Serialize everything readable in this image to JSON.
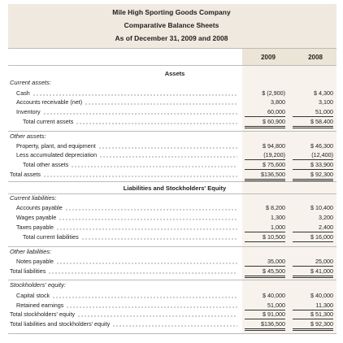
{
  "header": {
    "company": "Mile High Sporting Goods Company",
    "title": "Comparative Balance Sheets",
    "date": "As of December 31, 2009 and 2008"
  },
  "columns": [
    "2009",
    "2008"
  ],
  "sections": [
    {
      "heading": "Assets",
      "groups": [
        {
          "title": "Current assets:",
          "rows": [
            {
              "label": "Cash",
              "values": [
                "$ (2,900)",
                "$ 4,300"
              ]
            },
            {
              "label": "Accounts receivable (net)",
              "values": [
                "3,800",
                "3,100"
              ]
            },
            {
              "label": "Inventory",
              "values": [
                "60,000",
                "51,000"
              ]
            },
            {
              "label": "Total current assets",
              "values": [
                "$ 60,900",
                "$ 58,400"
              ]
            }
          ]
        },
        {
          "title": "Other assets:",
          "rows": [
            {
              "label": "Property, plant, and equipment",
              "values": [
                "$ 94,800",
                "$ 46,300"
              ]
            },
            {
              "label": "Less accumulated depreciation",
              "values": [
                "(19,200)",
                "(12,400)"
              ]
            },
            {
              "label": "Total other assets",
              "values": [
                "$ 75,600",
                "$ 33,900"
              ]
            },
            {
              "label": "Total assets",
              "values": [
                "$136,500",
                "$ 92,300"
              ]
            }
          ]
        }
      ]
    },
    {
      "heading": "Liabilities and Stockholders' Equity",
      "groups": [
        {
          "title": "Current liabilities:",
          "rows": [
            {
              "label": "Accounts payable",
              "values": [
                "$ 8,200",
                "$ 10,400"
              ]
            },
            {
              "label": "Wages payable",
              "values": [
                "1,300",
                "3,200"
              ]
            },
            {
              "label": "Taxes payable",
              "values": [
                "1,000",
                "2,400"
              ]
            },
            {
              "label": "Total current liabilities",
              "values": [
                "$ 10,500",
                "$ 16,000"
              ]
            }
          ]
        },
        {
          "title": "Other liabilities:",
          "rows": [
            {
              "label": "Notes payable",
              "values": [
                "35,000",
                "25,000"
              ]
            },
            {
              "label": "Total liabilities",
              "values": [
                "$ 45,500",
                "$ 41,000"
              ]
            }
          ]
        },
        {
          "title": "Stockholders' equity:",
          "rows": [
            {
              "label": "Capital stock",
              "values": [
                "$ 40,000",
                "$ 40,000"
              ]
            },
            {
              "label": "Retained earnings",
              "values": [
                "51,000",
                "11,300"
              ]
            },
            {
              "label": "Total stockholders' equity",
              "values": [
                "$ 91,000",
                "$ 51,300"
              ]
            },
            {
              "label": "Total liabilities and stockholders' equity",
              "values": [
                "$136,500",
                "$ 92,300"
              ]
            }
          ]
        }
      ]
    }
  ]
}
